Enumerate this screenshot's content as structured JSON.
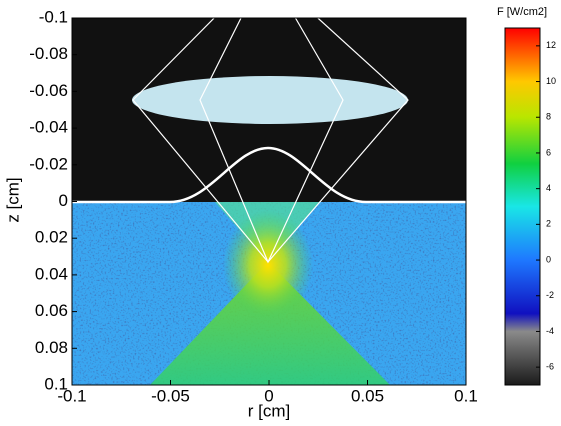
{
  "chart_data": {
    "type": "heatmap",
    "xlabel": "r [cm]",
    "ylabel": "z [cm]",
    "xlim": [
      -0.1,
      0.1
    ],
    "xticks": [
      -0.1,
      -0.05,
      0,
      0.05,
      0.1
    ],
    "ylim": [
      -0.1,
      0.1
    ],
    "yticks": [
      -0.1,
      -0.08,
      -0.06,
      -0.04,
      -0.02,
      0,
      0.02,
      0.04,
      0.06,
      0.08,
      0.1
    ],
    "y_reversed": true,
    "colorbar": {
      "label": "F [W/cm2]",
      "clim": [
        -7,
        13
      ],
      "ticks": [
        12,
        10,
        8,
        6,
        4,
        2,
        0,
        -2,
        -4,
        -6
      ]
    }
  }
}
